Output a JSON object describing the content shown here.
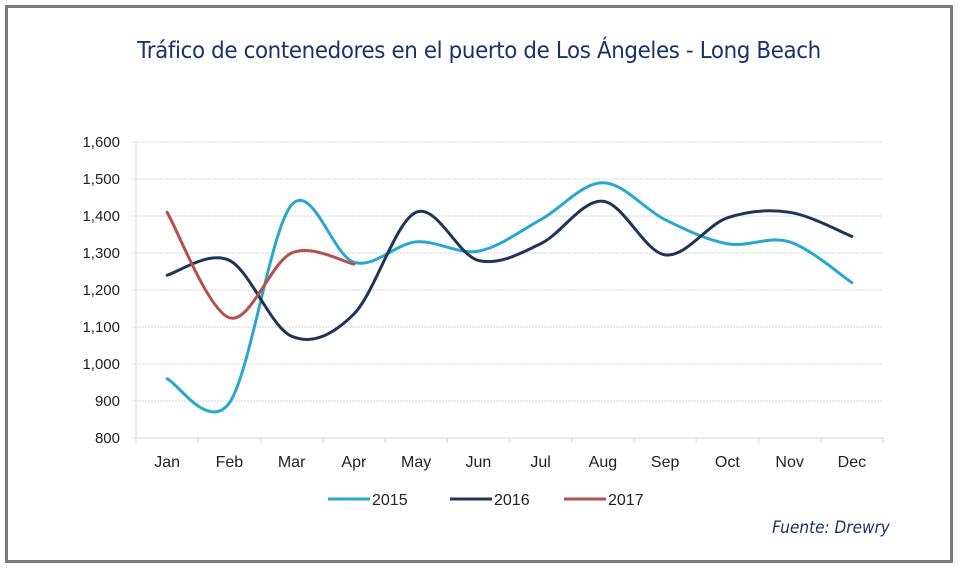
{
  "chart_data": {
    "type": "line",
    "title": "Tráfico de contenedores en el puerto de Los Ángeles - Long Beach",
    "xlabel": "",
    "ylabel": "",
    "categories": [
      "Jan",
      "Feb",
      "Mar",
      "Apr",
      "May",
      "Jun",
      "Jul",
      "Aug",
      "Sep",
      "Oct",
      "Nov",
      "Dec"
    ],
    "ylim": [
      800,
      1600
    ],
    "yticks": [
      800,
      900,
      1000,
      1100,
      1200,
      1300,
      1400,
      1500,
      1600
    ],
    "ytick_labels": [
      "800",
      "900",
      "1,000",
      "1,100",
      "1,200",
      "1,300",
      "1,400",
      "1,500",
      "1,600"
    ],
    "grid": true,
    "smooth": true,
    "legend_position": "bottom",
    "series": [
      {
        "name": "2015",
        "color": "#2aa7cf",
        "values": [
          960,
          895,
          1430,
          1275,
          1330,
          1305,
          1390,
          1490,
          1390,
          1325,
          1330,
          1220
        ]
      },
      {
        "name": "2016",
        "color": "#1f3558",
        "values": [
          1240,
          1280,
          1075,
          1135,
          1410,
          1280,
          1325,
          1440,
          1295,
          1395,
          1410,
          1345
        ]
      },
      {
        "name": "2017",
        "color": "#b5514a",
        "values": [
          1410,
          1125,
          1300,
          1270
        ]
      }
    ],
    "source": "Fuente: Drewry"
  }
}
